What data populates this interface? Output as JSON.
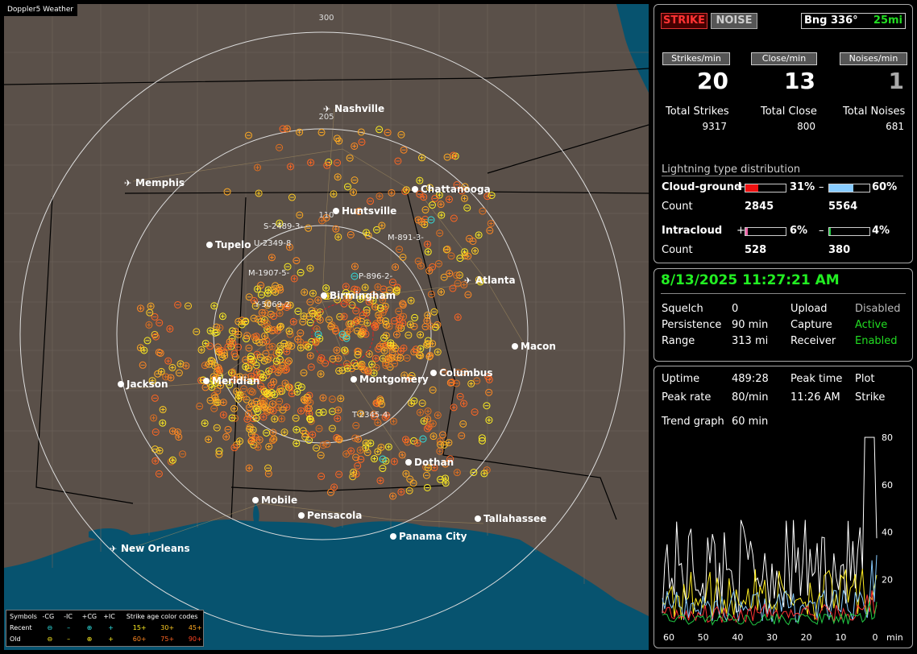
{
  "map": {
    "title": "Doppler5 Weather",
    "range_labels": [
      "300",
      "205",
      "110"
    ],
    "cities": [
      {
        "name": "Nashville",
        "airport": true
      },
      {
        "name": "Memphis",
        "airport": true
      },
      {
        "name": "Chattanooga",
        "airport": false
      },
      {
        "name": "Huntsville",
        "airport": false
      },
      {
        "name": "Tupelo",
        "airport": false
      },
      {
        "name": "Birmingham",
        "airport": false
      },
      {
        "name": "Atlanta",
        "airport": true
      },
      {
        "name": "Macon",
        "airport": false
      },
      {
        "name": "Jackson",
        "airport": false
      },
      {
        "name": "Meridian",
        "airport": false
      },
      {
        "name": "Montgomery",
        "airport": false
      },
      {
        "name": "Columbus",
        "airport": false
      },
      {
        "name": "Dothan",
        "airport": false
      },
      {
        "name": "Mobile",
        "airport": false
      },
      {
        "name": "Pensacola",
        "airport": false
      },
      {
        "name": "Tallahassee",
        "airport": false
      },
      {
        "name": "Panama City",
        "airport": false
      },
      {
        "name": "New Orleans",
        "airport": true
      }
    ],
    "cell_labels": [
      "S-2489-3-",
      "U-2349-8",
      "M-891-3-",
      "P-896-2-",
      "M-1907-5-",
      "Y-5069-2",
      "T-2345-4-"
    ],
    "legend": {
      "symbols": "Symbols",
      "cols": [
        "-CG",
        "-IC",
        "+CG",
        "+IC"
      ],
      "age_title": "Strike age color codes",
      "recent": "Recent",
      "old": "Old",
      "recent_ages": [
        "15+",
        "30+",
        "45+"
      ],
      "old_ages": [
        "60+",
        "75+",
        "90+"
      ]
    }
  },
  "status": {
    "strike_button": "STRIKE",
    "noise_button": "NOISE",
    "bearing": "Bng 336°",
    "distance": "25mi",
    "rate_headers": [
      "Strikes/min",
      "Close/min",
      "Noises/min"
    ],
    "rates": [
      "20",
      "13",
      "1"
    ],
    "total_labels": [
      "Total Strikes",
      "Total Close",
      "Total Noises"
    ],
    "totals": [
      "9317",
      "800",
      "681"
    ],
    "distribution_title": "Lightning type distribution",
    "cloud_ground": {
      "label": "Cloud-ground",
      "pos_pct": 31,
      "neg_pct": 60,
      "pos_text": "31%",
      "neg_text": "60%",
      "count_label": "Count",
      "pos_count": "2845",
      "neg_count": "5564"
    },
    "intracloud": {
      "label": "Intracloud",
      "pos_pct": 6,
      "neg_pct": 4,
      "pos_text": "6%",
      "neg_text": "4%",
      "count_label": "Count",
      "pos_count": "528",
      "neg_count": "380"
    },
    "plus": "+",
    "minus": "–"
  },
  "info": {
    "datetime": "8/13/2025 11:27:21 AM",
    "rows": [
      {
        "k1": "Squelch",
        "v1": "0",
        "k2": "Upload",
        "v2": "Disabled"
      },
      {
        "k1": "Persistence",
        "v1": "90 min",
        "k2": "Capture",
        "v2": "Active"
      },
      {
        "k1": "Range",
        "v1": "313 mi",
        "k2": "Receiver",
        "v2": "Enabled"
      }
    ]
  },
  "trend": {
    "uptime_label": "Uptime",
    "uptime": "489:28",
    "peak_time_label": "Peak time",
    "peak_time": "11:26 AM",
    "plot_label": "Plot",
    "plot": "Strike",
    "peak_rate_label": "Peak rate",
    "peak_rate": "80/min",
    "graph_label": "Trend graph",
    "graph_window": "60 min",
    "x_ticks": [
      "60",
      "50",
      "40",
      "30",
      "20",
      "10",
      "0"
    ],
    "x_unit": "min",
    "y_ticks": [
      "80",
      "60",
      "40",
      "20"
    ]
  },
  "colors": {
    "red": "#ff2020",
    "green": "#22dd22",
    "cyan": "#30e0e0",
    "yellow": "#ffee22",
    "orange": "#ee7711",
    "land": "#5a5049",
    "water": "#07536f"
  }
}
